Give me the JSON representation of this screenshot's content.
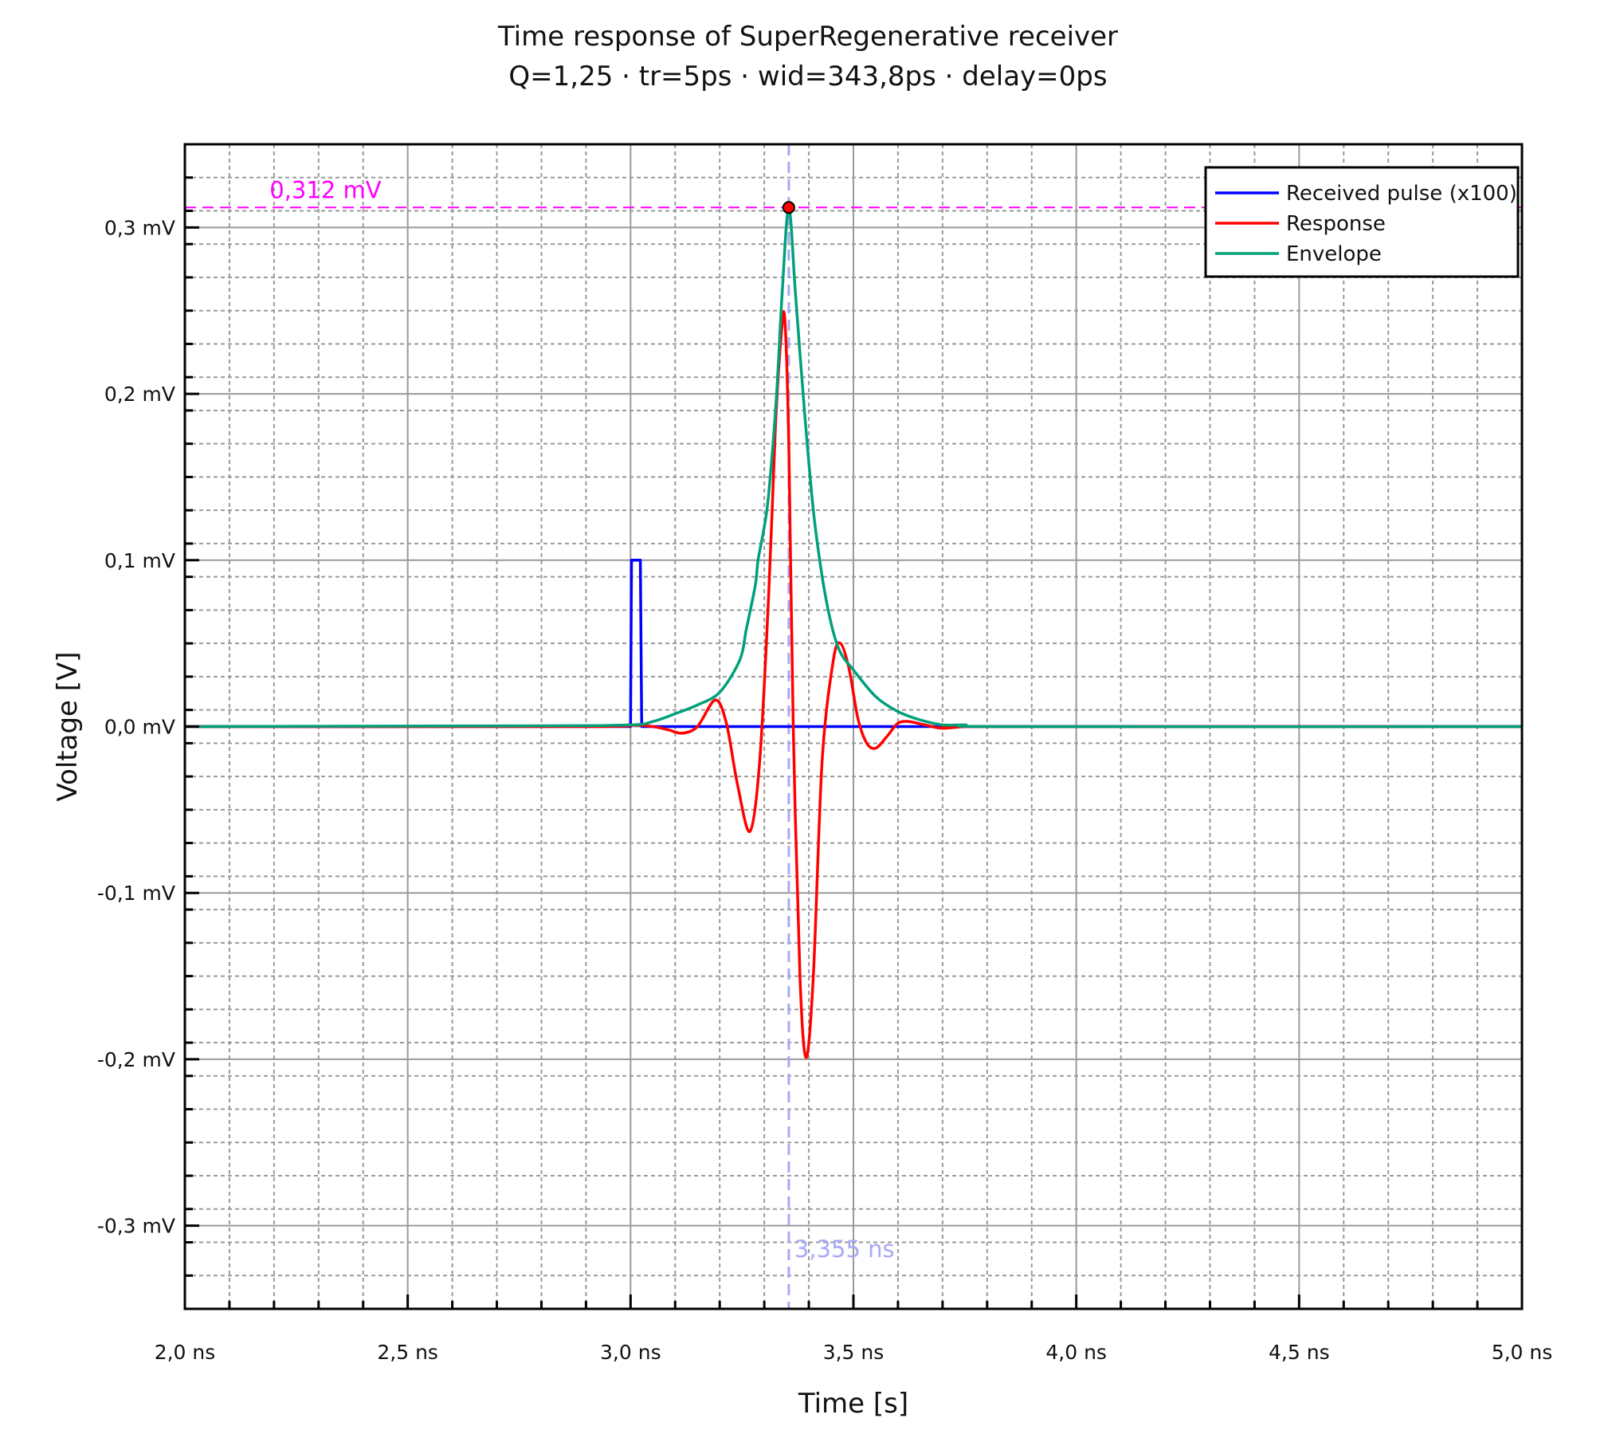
{
  "chart_data": {
    "type": "line",
    "title": "Time response of SuperRegenerative receiver",
    "subtitle": "Q=1,25  ·  tr=5ps  ·  wid=343,8ps  ·  delay=0ps",
    "xlabel": "Time [s]",
    "ylabel": "Voltage [V]",
    "x_unit": "ns",
    "y_unit": "mV",
    "xlim": [
      2.0,
      5.0
    ],
    "ylim": [
      -0.35,
      0.35
    ],
    "x_ticks": [
      2.0,
      2.5,
      3.0,
      3.5,
      4.0,
      4.5,
      5.0
    ],
    "x_tick_labels": [
      "2,0 ns",
      "2,5 ns",
      "3,0 ns",
      "3,5 ns",
      "4,0 ns",
      "4,5 ns",
      "5,0 ns"
    ],
    "x_minor_step": 0.1,
    "y_ticks": [
      -0.3,
      -0.2,
      -0.1,
      0.0,
      0.1,
      0.2,
      0.3
    ],
    "y_tick_labels": [
      "-0,3 mV",
      "-0,2 mV",
      "-0,1 mV",
      "0,0 mV",
      "0,1 mV",
      "0,2 mV",
      "0,3 mV"
    ],
    "y_minor_step": 0.02,
    "grid": true,
    "legend_position": "upper right",
    "series": [
      {
        "name": "Received pulse (x100)",
        "color": "#0000ff",
        "x": [
          2.0,
          3.0,
          3.002,
          3.022,
          3.025,
          5.0
        ],
        "y": [
          0.0,
          0.0,
          0.1,
          0.1,
          0.0,
          0.0
        ]
      },
      {
        "name": "Response",
        "color": "#ff0000",
        "x": [
          2.0,
          2.9,
          3.0,
          3.05,
          3.085,
          3.116,
          3.15,
          3.19,
          3.215,
          3.24,
          3.268,
          3.29,
          3.31,
          3.325,
          3.338,
          3.346,
          3.355,
          3.365,
          3.38,
          3.394,
          3.41,
          3.43,
          3.455,
          3.471,
          3.49,
          3.51,
          3.53,
          3.55,
          3.575,
          3.6,
          3.625,
          3.66,
          3.7,
          3.75,
          3.8,
          5.0
        ],
        "y": [
          0.0,
          0.0,
          0.001,
          0.0,
          -0.002,
          -0.004,
          0.0,
          0.016,
          0.002,
          -0.035,
          -0.063,
          -0.02,
          0.08,
          0.18,
          0.235,
          0.245,
          0.17,
          0.0,
          -0.15,
          -0.199,
          -0.15,
          -0.02,
          0.04,
          0.05,
          0.035,
          0.005,
          -0.01,
          -0.013,
          -0.006,
          0.002,
          0.003,
          0.001,
          -0.001,
          0.0,
          0.0,
          0.0
        ]
      },
      {
        "name": "Envelope",
        "color": "#00a07a",
        "x": [
          2.0,
          2.8,
          3.0,
          3.05,
          3.1,
          3.15,
          3.2,
          3.245,
          3.26,
          3.28,
          3.286,
          3.3,
          3.31,
          3.327,
          3.34,
          3.355,
          3.37,
          3.39,
          3.41,
          3.43,
          3.45,
          3.47,
          3.5,
          3.55,
          3.6,
          3.65,
          3.7,
          3.75,
          3.85,
          5.0
        ],
        "y": [
          0.0,
          0.0005,
          0.001,
          0.003,
          0.0077,
          0.013,
          0.0206,
          0.04,
          0.059,
          0.085,
          0.1,
          0.12,
          0.14,
          0.197,
          0.26,
          0.312,
          0.26,
          0.19,
          0.13,
          0.09,
          0.062,
          0.045,
          0.034,
          0.018,
          0.009,
          0.004,
          0.001,
          0.001,
          0.0,
          0.0
        ]
      }
    ],
    "annotations": [
      {
        "type": "hline",
        "y": 0.312,
        "color": "#ff00ff",
        "style": "dashed",
        "label": "0,312 mV",
        "label_x": 2.19
      },
      {
        "type": "vline",
        "x": 3.355,
        "color": "#a8a8f8",
        "style": "dashed",
        "label": "3,355 ns",
        "label_y": -0.313
      },
      {
        "type": "marker",
        "x": 3.355,
        "y": 0.312,
        "color": "#ff0000",
        "edge": "#000000"
      }
    ]
  },
  "title": {
    "line1": "Time response of SuperRegenerative receiver",
    "line2": "Q=1,25  ·  tr=5ps  ·  wid=343,8ps  ·  delay=0ps"
  },
  "legend": {
    "items": [
      {
        "label": "Received pulse (x100)",
        "color": "#0000ff"
      },
      {
        "label": "Response",
        "color": "#ff0000"
      },
      {
        "label": "Envelope",
        "color": "#00a07a"
      }
    ]
  },
  "axes": {
    "xlabel": "Time [s]",
    "ylabel": "Voltage [V]"
  }
}
